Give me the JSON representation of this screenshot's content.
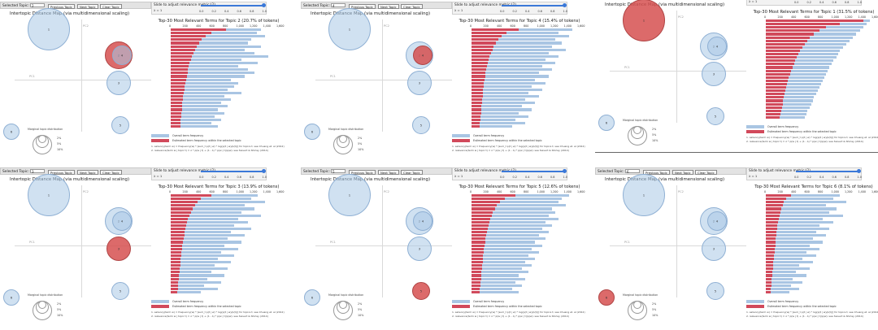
{
  "controls": {
    "selected_label": "Selected Topic:",
    "prev": "Previous Topic",
    "next": "Next Topic",
    "clear": "Clear Topic",
    "slider_label": "Slide to adjust relevance metric:(2)",
    "lambda": "λ = 1",
    "slider_ticks": [
      "0.0",
      "0.2",
      "0.4",
      "0.6",
      "0.8",
      "1.0"
    ],
    "mds_title": "Intertopic Distance Map (via multidimensional scaling)",
    "pc1": "PC1",
    "pc2": "PC2",
    "marginal_label": "Marginal topic distribution",
    "marginal_pcts": [
      "2%",
      "5%",
      "10%"
    ],
    "legend_overall": "Overall term frequency",
    "legend_estimated": "Estimated term frequency within the selected topic",
    "note1": "1. saliency(term w) = frequency(w) * [sum_t p(t | w) * log(p(t | w)/p(t))] for topics t; see Chuang et. al (2012)",
    "note2": "2. relevance(term w | topic t) = λ * p(w | t) + (1 - λ) * p(w | t)/p(w); see Sievert & Shirley (2014)"
  },
  "chart_data": [
    {
      "type": "bar",
      "selected_topic": "2",
      "title": "Top-30 Most Relevant Terms for Topic 2 (20.7% of tokens)",
      "xticks": [
        "0",
        "200",
        "400",
        "600",
        "800",
        "1,000",
        "1,200",
        "1,400",
        "1,600"
      ],
      "xlim": [
        0,
        1600
      ],
      "bubbles": [
        {
          "id": "1",
          "size": 26,
          "selected": false
        },
        {
          "id": "2",
          "size": 17,
          "selected": true
        },
        {
          "id": "3",
          "size": 15,
          "selected": false
        },
        {
          "id": "4",
          "size": 12,
          "selected": false
        },
        {
          "id": "5",
          "size": 11,
          "selected": false
        },
        {
          "id": "6",
          "size": 10,
          "selected": false
        }
      ],
      "overall": [
        1350,
        1280,
        1400,
        1200,
        1150,
        1350,
        1100,
        1250,
        1450,
        1050,
        1300,
        1000,
        1150,
        1250,
        1100,
        900,
        1000,
        950,
        850,
        1050,
        800,
        900,
        750,
        850,
        700,
        800,
        650,
        750,
        600,
        700
      ],
      "estimated": [
        820,
        600,
        520,
        460,
        420,
        390,
        360,
        340,
        320,
        300,
        280,
        270,
        260,
        250,
        240,
        230,
        220,
        210,
        200,
        190,
        185,
        180,
        175,
        170,
        165,
        160,
        155,
        150,
        145,
        140
      ]
    },
    {
      "type": "bar",
      "selected_topic": "4",
      "title": "Top-30 Most Relevant Terms for Topic 4 (15.4% of tokens)",
      "xticks": [
        "0",
        "200",
        "400",
        "600",
        "800",
        "1,000",
        "1,200",
        "1,400",
        "1,600"
      ],
      "xlim": [
        0,
        1600
      ],
      "bubbles": [
        {
          "id": "1",
          "size": 26,
          "selected": false
        },
        {
          "id": "2",
          "size": 17,
          "selected": false
        },
        {
          "id": "3",
          "size": 15,
          "selected": false
        },
        {
          "id": "4",
          "size": 12,
          "selected": true
        },
        {
          "id": "5",
          "size": 11,
          "selected": false
        },
        {
          "id": "6",
          "size": 10,
          "selected": false
        }
      ],
      "overall": [
        1500,
        1300,
        1450,
        1250,
        1350,
        1200,
        1400,
        1150,
        1300,
        1100,
        1250,
        1050,
        1200,
        1000,
        1150,
        950,
        1100,
        900,
        1050,
        850,
        1000,
        800,
        950,
        750,
        900,
        700,
        850,
        650,
        800,
        600
      ],
      "estimated": [
        700,
        520,
        450,
        400,
        360,
        330,
        310,
        290,
        270,
        255,
        240,
        230,
        220,
        210,
        200,
        190,
        185,
        180,
        175,
        170,
        165,
        160,
        155,
        150,
        145,
        140,
        135,
        130,
        125,
        120
      ]
    },
    {
      "type": "bar",
      "selected_topic": "1",
      "title": "Top-30 Most Relevant Terms for Topic 1 (31.5% of tokens)",
      "xticks": [
        "0",
        "200",
        "400",
        "600",
        "800",
        "1,000",
        "1,200",
        "1,400",
        "1,600"
      ],
      "xlim": [
        0,
        1600
      ],
      "bubbles": [
        {
          "id": "1",
          "size": 26,
          "selected": true
        },
        {
          "id": "2",
          "size": 17,
          "selected": false
        },
        {
          "id": "3",
          "size": 15,
          "selected": false
        },
        {
          "id": "4",
          "size": 12,
          "selected": false
        },
        {
          "id": "5",
          "size": 11,
          "selected": false
        },
        {
          "id": "6",
          "size": 10,
          "selected": false
        }
      ],
      "overall": [
        1550,
        1500,
        1450,
        1400,
        1350,
        1300,
        1250,
        1200,
        1150,
        1100,
        1080,
        1050,
        1000,
        980,
        950,
        920,
        900,
        870,
        850,
        820,
        800,
        780,
        750,
        720,
        700,
        680,
        650,
        620,
        600,
        580
      ],
      "estimated": [
        1450,
        1100,
        900,
        800,
        720,
        660,
        620,
        580,
        540,
        510,
        480,
        460,
        440,
        420,
        400,
        380,
        360,
        345,
        330,
        315,
        300,
        290,
        280,
        270,
        260,
        250,
        240,
        230,
        220,
        210
      ]
    },
    {
      "type": "bar",
      "selected_topic": "3",
      "title": "Top-30 Most Relevant Terms for Topic 3 (13.9% of tokens)",
      "xticks": [
        "0",
        "200",
        "400",
        "600",
        "800",
        "1,000",
        "1,200",
        "1,400",
        "1,600"
      ],
      "xlim": [
        0,
        1600
      ],
      "bubbles": [
        {
          "id": "1",
          "size": 26,
          "selected": false
        },
        {
          "id": "2",
          "size": 17,
          "selected": false
        },
        {
          "id": "3",
          "size": 15,
          "selected": true
        },
        {
          "id": "4",
          "size": 12,
          "selected": false
        },
        {
          "id": "5",
          "size": 11,
          "selected": false
        },
        {
          "id": "6",
          "size": 10,
          "selected": false
        }
      ],
      "overall": [
        1300,
        1200,
        1400,
        1100,
        1250,
        1050,
        1350,
        1000,
        1150,
        950,
        1200,
        900,
        1100,
        850,
        1050,
        800,
        1000,
        750,
        950,
        700,
        900,
        650,
        850,
        600,
        800,
        550,
        750,
        500,
        700,
        450
      ],
      "estimated": [
        600,
        450,
        400,
        360,
        330,
        300,
        280,
        260,
        245,
        230,
        220,
        210,
        200,
        190,
        180,
        170,
        165,
        160,
        155,
        150,
        145,
        140,
        135,
        130,
        125,
        120,
        115,
        110,
        105,
        100
      ]
    },
    {
      "type": "bar",
      "selected_topic": "5",
      "title": "Top-30 Most Relevant Terms for Topic 5 (12.6% of tokens)",
      "xticks": [
        "0",
        "200",
        "400",
        "600",
        "800",
        "1,000",
        "1,200",
        "1,400",
        "1,600"
      ],
      "xlim": [
        0,
        1600
      ],
      "bubbles": [
        {
          "id": "1",
          "size": 26,
          "selected": false
        },
        {
          "id": "2",
          "size": 17,
          "selected": false
        },
        {
          "id": "3",
          "size": 15,
          "selected": false
        },
        {
          "id": "4",
          "size": 12,
          "selected": false
        },
        {
          "id": "5",
          "size": 11,
          "selected": true
        },
        {
          "id": "6",
          "size": 10,
          "selected": false
        }
      ],
      "overall": [
        1450,
        1350,
        1300,
        1400,
        1200,
        1250,
        1150,
        1300,
        1100,
        1200,
        1050,
        1150,
        1000,
        1100,
        950,
        1050,
        900,
        1000,
        850,
        950,
        800,
        900,
        750,
        850,
        700,
        800,
        650,
        750,
        600,
        700
      ],
      "estimated": [
        650,
        500,
        430,
        380,
        350,
        320,
        300,
        280,
        265,
        250,
        240,
        230,
        220,
        210,
        200,
        190,
        185,
        180,
        175,
        170,
        165,
        160,
        155,
        150,
        145,
        140,
        135,
        130,
        125,
        120
      ]
    },
    {
      "type": "bar",
      "selected_topic": "6",
      "title": "Top-30 Most Relevant Terms for Topic 6 (8.1% of tokens)",
      "xticks": [
        "0",
        "200",
        "400",
        "600",
        "800",
        "1,000",
        "1,200",
        "1,400",
        "1,600"
      ],
      "xlim": [
        0,
        1600
      ],
      "bubbles": [
        {
          "id": "1",
          "size": 26,
          "selected": false
        },
        {
          "id": "2",
          "size": 17,
          "selected": false
        },
        {
          "id": "3",
          "size": 15,
          "selected": false
        },
        {
          "id": "4",
          "size": 12,
          "selected": false
        },
        {
          "id": "5",
          "size": 11,
          "selected": false
        },
        {
          "id": "6",
          "size": 10,
          "selected": true
        }
      ],
      "overall": [
        1100,
        1000,
        1200,
        900,
        1050,
        950,
        1150,
        850,
        1000,
        800,
        950,
        750,
        900,
        700,
        850,
        650,
        800,
        600,
        750,
        550,
        700,
        500,
        650,
        450,
        600,
        400,
        550,
        380,
        500,
        350
      ],
      "estimated": [
        380,
        300,
        270,
        250,
        230,
        215,
        200,
        190,
        180,
        170,
        165,
        160,
        155,
        150,
        145,
        140,
        135,
        130,
        125,
        120,
        115,
        110,
        105,
        100,
        95,
        90,
        85,
        80,
        75,
        70
      ]
    }
  ]
}
